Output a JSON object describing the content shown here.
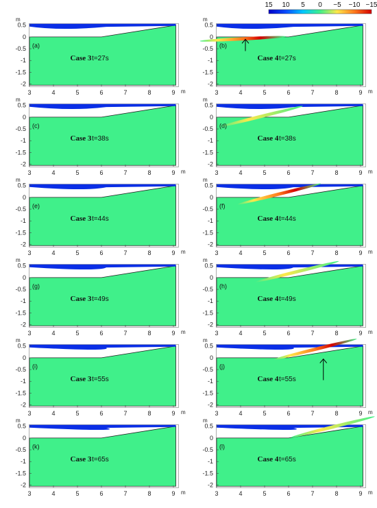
{
  "colorbar": {
    "labels": [
      "15",
      "10",
      "5",
      "0",
      "−5",
      "−10",
      "−15"
    ],
    "colors": [
      "#0000c8",
      "#0a4cff",
      "#00c8ff",
      "#40f08a",
      "#ffe84a",
      "#ff7a1e",
      "#d40000"
    ]
  },
  "axes": {
    "x_ticks": [
      "3",
      "4",
      "5",
      "6",
      "7",
      "8",
      "9"
    ],
    "y_ticks": [
      "0.5",
      "0",
      "-0.5",
      "-1",
      "-1.5",
      "-2"
    ],
    "x_unit": "m",
    "y_unit": "m"
  },
  "colors": {
    "soil": "#40f08a",
    "water": "#0a2ee6",
    "frame": "#888888"
  },
  "panels": [
    {
      "label": "(a)",
      "case": "Case 3",
      "time": "t=27s"
    },
    {
      "label": "(b)",
      "case": "Case 4",
      "time": "t=27s"
    },
    {
      "label": "(c)",
      "case": "Case 3",
      "time": "t=38s"
    },
    {
      "label": "(d)",
      "case": "Case 4",
      "time": "t=38s"
    },
    {
      "label": "(e)",
      "case": "Case 3",
      "time": "t=44s"
    },
    {
      "label": "(f)",
      "case": "Case 4",
      "time": "t=44s"
    },
    {
      "label": "(g)",
      "case": "Case 3",
      "time": "t=49s"
    },
    {
      "label": "(h)",
      "case": "Case 4",
      "time": "t=49s"
    },
    {
      "label": "(i)",
      "case": "Case 3",
      "time": "t=55s"
    },
    {
      "label": "(j)",
      "case": "Case 4",
      "time": "t=55s"
    },
    {
      "label": "(k)",
      "case": "Case 3",
      "time": "t=65s"
    },
    {
      "label": "(l)",
      "case": "Case 4",
      "time": "t=65s"
    }
  ]
}
